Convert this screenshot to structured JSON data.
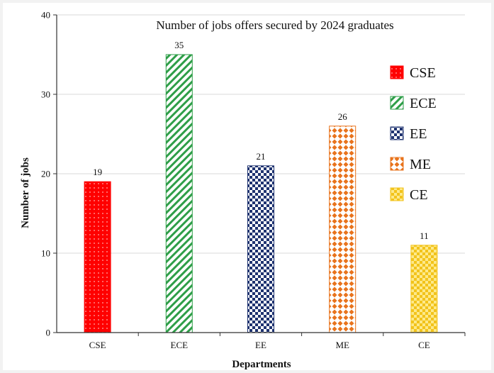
{
  "chart_data": {
    "type": "bar",
    "title": "Number of jobs offers secured by 2024 graduates",
    "xlabel": "Departments",
    "ylabel": "Number of jobs",
    "categories": [
      "CSE",
      "ECE",
      "EE",
      "ME",
      "CE"
    ],
    "values": [
      19,
      35,
      21,
      26,
      11
    ],
    "ylim": [
      0,
      40
    ],
    "yticks": [
      0,
      10,
      20,
      30,
      40
    ],
    "grid": true,
    "legend": "top-right",
    "colors": [
      "#ff0000",
      "#2e9e48",
      "#1f3370",
      "#e8731c",
      "#f2c31b"
    ],
    "patterns": [
      "dots",
      "diagonal-stripes",
      "checker",
      "diamond-dots",
      "checker-dots"
    ]
  }
}
